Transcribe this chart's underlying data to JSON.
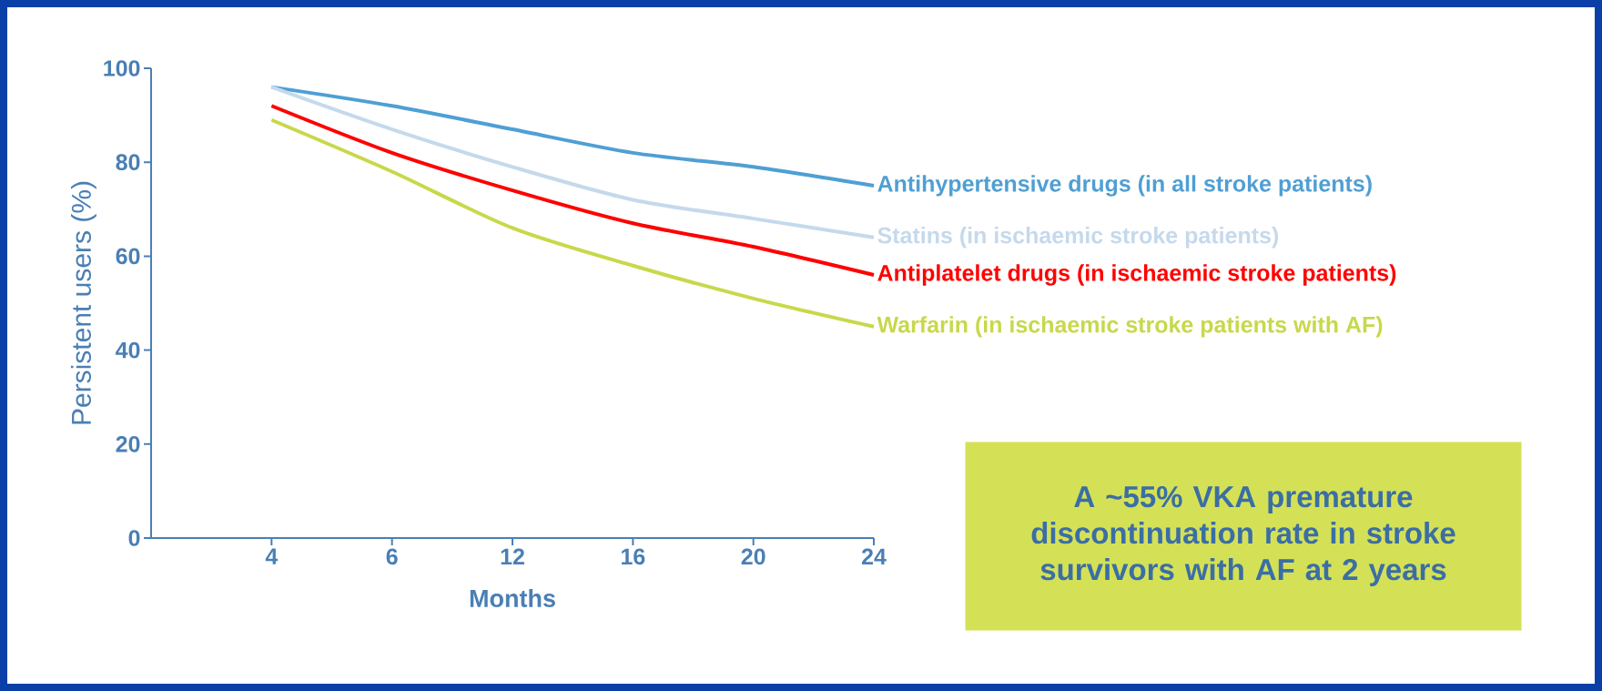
{
  "chart_data": {
    "type": "line",
    "xlabel": "Months",
    "ylabel": "Persistent users (%)",
    "categories": [
      "4",
      "6",
      "12",
      "16",
      "20",
      "24"
    ],
    "ylim": [
      0,
      100
    ],
    "yticks": [
      0,
      20,
      40,
      60,
      80,
      100
    ],
    "series": [
      {
        "name": "Antihypertensive drugs (in all stroke patients)",
        "color": "#4f9fd4",
        "values": [
          96,
          92,
          87,
          82,
          79,
          75
        ]
      },
      {
        "name": "Statins (in ischaemic stroke patients)",
        "color": "#c5d9ec",
        "values": [
          96,
          87,
          79,
          72,
          68,
          64
        ]
      },
      {
        "name": "Antiplatelet drugs (in ischaemic stroke patients)",
        "color": "#ff0000",
        "values": [
          92,
          82,
          74,
          67,
          62,
          56
        ]
      },
      {
        "name": "Warfarin (in ischaemic stroke patients with AF)",
        "color": "#c8d84a",
        "values": [
          89,
          78,
          66,
          58,
          51,
          45
        ]
      }
    ],
    "annotations": [
      "A ~55% VKA premature discontinuation rate in stroke survivors with AF at 2 years"
    ]
  }
}
